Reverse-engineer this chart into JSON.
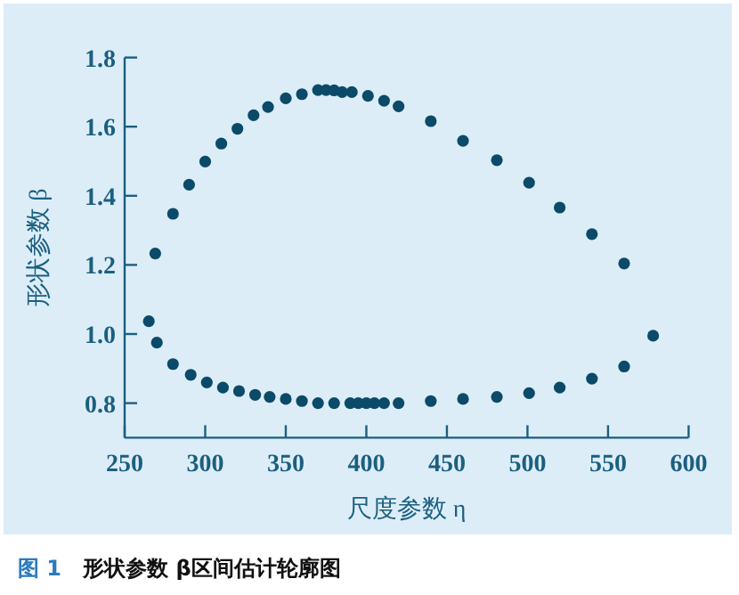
{
  "chart_data": {
    "type": "scatter",
    "title": "形状参数 β区间估计轮廓图",
    "annotations": [
      "图 1"
    ],
    "xlabel": "尺度参数 η",
    "ylabel": "形状参数 β",
    "marker": "circle",
    "grid": false,
    "xlim": [
      250,
      600
    ],
    "ylim": [
      0.7,
      1.8
    ],
    "xticks": [
      250,
      300,
      350,
      400,
      450,
      500,
      550,
      600
    ],
    "yticks": [
      0.8,
      {
        "value": 1,
        "label": "1.0"
      },
      1.2,
      1.4,
      1.6,
      1.8
    ],
    "series": [
      {
        "color": "#0b4a68",
        "x": [
          269,
          280,
          290,
          300,
          310,
          320,
          330,
          339,
          350,
          360,
          370,
          375,
          380,
          385,
          391,
          401,
          411,
          420,
          440,
          460,
          481,
          501,
          520,
          540,
          560,
          265,
          270,
          280,
          291,
          301,
          311,
          321,
          331,
          340,
          350,
          360,
          370,
          380,
          390,
          395,
          400,
          405,
          411,
          420,
          440,
          460,
          481,
          501,
          520,
          540,
          560,
          578
        ],
        "values": [
          1.233,
          1.348,
          1.432,
          1.499,
          1.551,
          1.594,
          1.633,
          1.657,
          1.682,
          1.694,
          1.706,
          1.706,
          1.705,
          1.7,
          1.7,
          1.689,
          1.675,
          1.659,
          1.616,
          1.559,
          1.503,
          1.438,
          1.366,
          1.289,
          1.204,
          1.037,
          0.975,
          0.913,
          0.882,
          0.86,
          0.845,
          0.835,
          0.824,
          0.818,
          0.812,
          0.806,
          0.8,
          0.8,
          0.8,
          0.8,
          0.8,
          0.8,
          0.8,
          0.8,
          0.806,
          0.812,
          0.818,
          0.829,
          0.845,
          0.871,
          0.906,
          0.995
        ]
      }
    ]
  }
}
